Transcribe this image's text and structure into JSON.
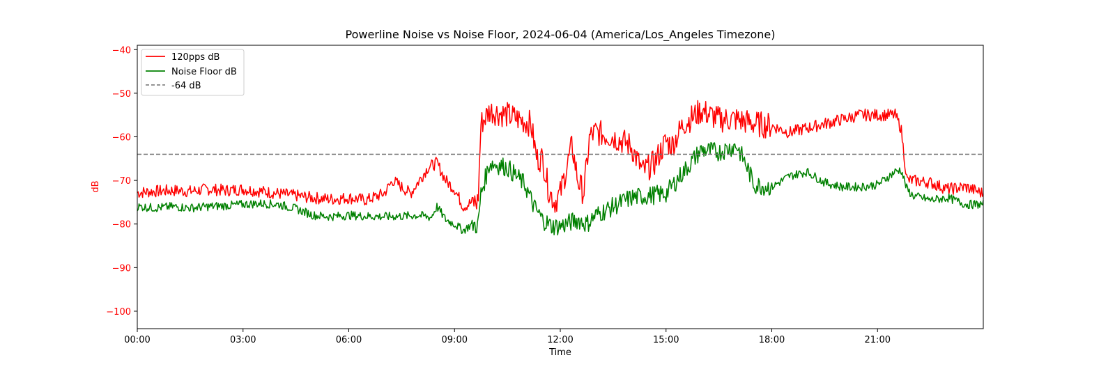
{
  "chart_data": {
    "type": "line",
    "title": "Powerline Noise vs Noise Floor, 2024-06-04 (America/Los_Angeles Timezone)",
    "xlabel": "Time",
    "ylabel": "dB",
    "ylabel_color": "#ff0000",
    "ytick_color": "#ff0000",
    "xlim": [
      "00:00",
      "24:00"
    ],
    "ylim": [
      -104,
      -39
    ],
    "x_ticks": [
      "00:00",
      "03:00",
      "06:00",
      "09:00",
      "12:00",
      "15:00",
      "18:00",
      "21:00"
    ],
    "y_ticks": [
      -40,
      -50,
      -60,
      -70,
      -80,
      -90,
      -100
    ],
    "grid": false,
    "legend": {
      "placement": "upper-left",
      "entries": [
        "120pps dB",
        "Noise Floor dB",
        "-64 dB"
      ]
    },
    "series": [
      {
        "name": "120pps dB",
        "color": "#ff0000",
        "style": "solid",
        "x": [
          "00:00",
          "00:30",
          "01:00",
          "01:30",
          "02:00",
          "02:30",
          "03:00",
          "03:30",
          "04:00",
          "04:30",
          "05:00",
          "05:30",
          "06:00",
          "06:30",
          "07:00",
          "07:15",
          "07:30",
          "07:45",
          "08:00",
          "08:15",
          "08:30",
          "08:45",
          "09:00",
          "09:15",
          "09:30",
          "09:40",
          "09:45",
          "10:00",
          "10:30",
          "11:00",
          "11:10",
          "11:20",
          "11:30",
          "11:40",
          "11:50",
          "12:00",
          "12:20",
          "12:30",
          "12:40",
          "12:50",
          "13:00",
          "13:30",
          "14:00",
          "14:20",
          "14:40",
          "15:00",
          "15:10",
          "15:30",
          "16:00",
          "16:30",
          "17:00",
          "17:30",
          "18:00",
          "18:30",
          "19:00",
          "19:30",
          "20:00",
          "20:30",
          "21:00",
          "21:30",
          "21:40",
          "21:50",
          "22:00",
          "22:30",
          "23:00",
          "23:30",
          "24:00"
        ],
        "y": [
          -72.8,
          -72.5,
          -72.3,
          -72.5,
          -72.0,
          -72.3,
          -72.0,
          -72.5,
          -73.0,
          -73.5,
          -74.0,
          -74.3,
          -74.0,
          -74.5,
          -73.0,
          -70.0,
          -71.5,
          -73.0,
          -70.0,
          -67.0,
          -66.0,
          -70.0,
          -72.0,
          -76.0,
          -75.0,
          -75.0,
          -57.0,
          -54.0,
          -55.0,
          -56.5,
          -57.0,
          -65.0,
          -65.0,
          -72.0,
          -75.0,
          -73.0,
          -62.0,
          -70.0,
          -73.0,
          -60.0,
          -59.0,
          -60.0,
          -62.0,
          -68.0,
          -66.0,
          -61.0,
          -62.0,
          -57.0,
          -54.0,
          -56.0,
          -56.0,
          -57.0,
          -57.5,
          -59.0,
          -58.0,
          -57.0,
          -56.0,
          -55.0,
          -55.0,
          -55.0,
          -58.0,
          -70.0,
          -70.0,
          -70.5,
          -72.0,
          -71.5,
          -73.0
        ]
      },
      {
        "name": "Noise Floor dB",
        "color": "#008000",
        "style": "solid",
        "x": [
          "00:00",
          "00:30",
          "01:00",
          "01:30",
          "02:00",
          "02:30",
          "03:00",
          "03:30",
          "04:00",
          "04:30",
          "05:00",
          "05:30",
          "06:00",
          "06:30",
          "07:00",
          "07:30",
          "08:00",
          "08:20",
          "08:30",
          "08:45",
          "09:00",
          "09:15",
          "09:30",
          "09:40",
          "09:45",
          "10:00",
          "10:30",
          "11:00",
          "11:15",
          "11:30",
          "11:45",
          "12:00",
          "12:30",
          "12:45",
          "13:00",
          "13:30",
          "14:00",
          "14:30",
          "15:00",
          "15:30",
          "16:00",
          "16:30",
          "17:00",
          "17:15",
          "17:30",
          "18:00",
          "18:30",
          "19:00",
          "19:30",
          "20:00",
          "20:30",
          "21:00",
          "21:30",
          "21:40",
          "21:50",
          "22:00",
          "22:30",
          "23:00",
          "23:30",
          "24:00"
        ],
        "y": [
          -76.0,
          -76.3,
          -76.0,
          -76.3,
          -76.0,
          -75.8,
          -75.5,
          -75.3,
          -75.5,
          -76.5,
          -78.0,
          -78.3,
          -78.0,
          -78.2,
          -78.3,
          -78.2,
          -78.0,
          -78.5,
          -76.0,
          -79.0,
          -80.0,
          -81.5,
          -80.0,
          -80.5,
          -73.0,
          -66.0,
          -67.0,
          -71.0,
          -76.0,
          -79.0,
          -80.5,
          -80.5,
          -79.0,
          -80.0,
          -78.0,
          -76.0,
          -74.0,
          -73.5,
          -73.0,
          -68.0,
          -63.0,
          -63.5,
          -62.0,
          -66.0,
          -71.0,
          -71.5,
          -69.0,
          -68.0,
          -70.5,
          -71.5,
          -71.5,
          -71.0,
          -68.0,
          -67.5,
          -72.0,
          -73.5,
          -74.5,
          -74.0,
          -75.5,
          -75.5
        ]
      },
      {
        "name": "-64 dB",
        "color": "#707070",
        "style": "dashed",
        "x": [
          "00:00",
          "24:00"
        ],
        "y": [
          -64,
          -64
        ]
      }
    ]
  }
}
